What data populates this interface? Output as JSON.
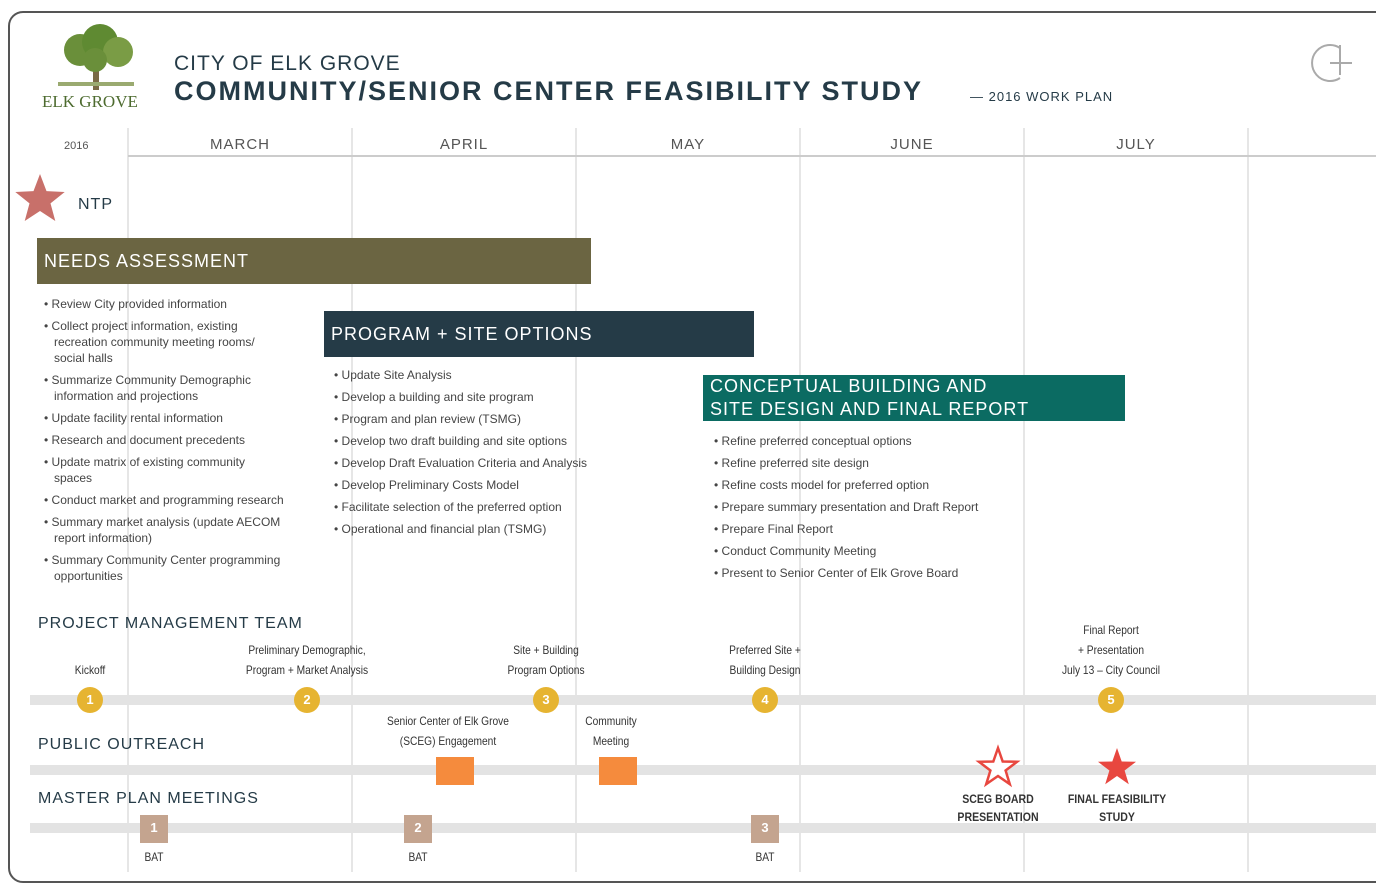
{
  "header": {
    "logo_text": "ELK GROVE",
    "org": "CITY OF ELK GROVE",
    "title": "COMMUNITY/SENIOR CENTER FEASIBILITY STUDY",
    "subtitle": "— 2016 WORK PLAN"
  },
  "timeline": {
    "year": "2016",
    "months": [
      "MARCH",
      "APRIL",
      "MAY",
      "JUNE",
      "JULY"
    ]
  },
  "ntp": "NTP",
  "phases": [
    {
      "title": [
        "NEEDS ASSESSMENT"
      ],
      "items": [
        "Review City provided information",
        "Collect project information, existing recreation community meeting rooms/ social halls",
        "Summarize Community Demographic information and projections",
        "Update facility rental information",
        "Research and document precedents",
        "Update matrix of existing community spaces",
        "Conduct market and programming research",
        "Summary market analysis (update AECOM report information)",
        "Summary Community Center programming opportunities"
      ]
    },
    {
      "title": [
        "PROGRAM + SITE OPTIONS"
      ],
      "items": [
        "Update Site Analysis",
        "Develop a building and site program",
        "Program and plan review (TSMG)",
        "Develop two draft building and site options",
        "Develop Draft Evaluation Criteria and Analysis",
        "Develop Preliminary Costs Model",
        "Facilitate selection of the preferred option",
        "Operational and financial plan (TSMG)"
      ]
    },
    {
      "title": [
        "CONCEPTUAL BUILDING AND",
        "SITE DESIGN AND FINAL REPORT"
      ],
      "items": [
        "Refine preferred conceptual options",
        "Refine preferred site design",
        "Refine costs model for preferred option",
        "Prepare summary presentation and Draft Report",
        "Prepare Final Report",
        "Conduct Community Meeting",
        "Present to Senior Center of Elk Grove Board"
      ]
    }
  ],
  "project_management": {
    "label": "PROJECT MANAGEMENT TEAM",
    "milestones": [
      {
        "number": 1,
        "label": [
          "Kickoff"
        ]
      },
      {
        "number": 2,
        "label": [
          "Preliminary Demographic,",
          "Program + Market Analysis"
        ]
      },
      {
        "number": 3,
        "label": [
          "Site + Building",
          "Program Options"
        ]
      },
      {
        "number": 4,
        "label": [
          "Preferred Site +",
          "Building Design"
        ]
      },
      {
        "number": 5,
        "label": [
          "Final Report",
          "+ Presentation",
          "July 13 – City Council"
        ]
      }
    ]
  },
  "public_outreach": {
    "label": "PUBLIC OUTREACH",
    "events": [
      {
        "label": [
          "Senior Center of Elk Grove",
          "(SCEG) Engagement"
        ]
      },
      {
        "label": [
          "Community",
          "Meeting"
        ]
      }
    ],
    "deliverables": [
      {
        "label": [
          "SCEG BOARD",
          "PRESENTATION"
        ]
      },
      {
        "label": [
          "FINAL FEASIBILITY",
          "STUDY"
        ]
      }
    ]
  },
  "master_plan": {
    "label": "MASTER PLAN MEETINGS",
    "meetings": [
      {
        "number": 1,
        "label": "BAT"
      },
      {
        "number": 2,
        "label": "BAT"
      },
      {
        "number": 3,
        "label": "BAT"
      }
    ]
  }
}
